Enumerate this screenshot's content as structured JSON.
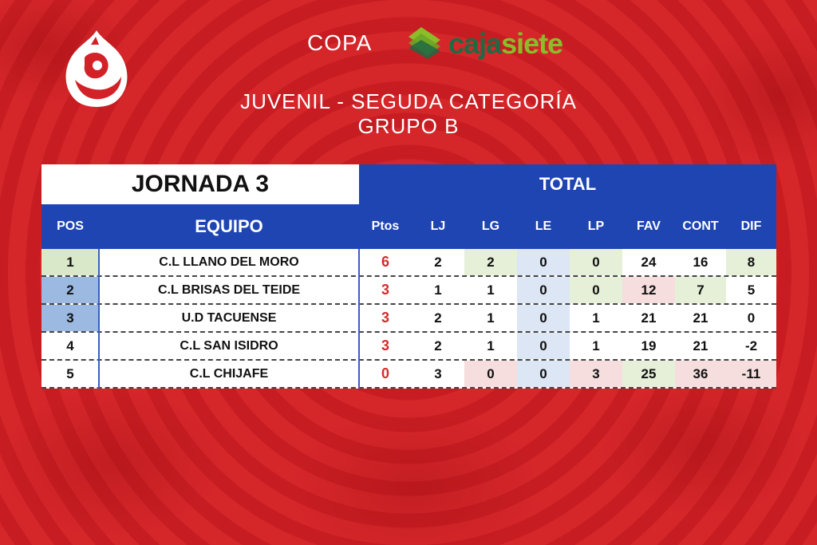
{
  "header": {
    "copa": "COPA",
    "sponsor_main": "caja",
    "sponsor_accent": "siete",
    "subtitle_line1": "JUVENIL - SEGUDA CATEGORÍA",
    "subtitle_line2": "GRUPO B"
  },
  "table": {
    "jornada": "JORNADA 3",
    "total": "TOTAL",
    "columns": [
      "POS",
      "EQUIPO",
      "Ptos",
      "LJ",
      "LG",
      "LE",
      "LP",
      "FAV",
      "CONT",
      "DIF"
    ],
    "rows": [
      {
        "pos": "1",
        "equipo": "C.L LLANO DEL MORO",
        "ptos": "6",
        "lj": "2",
        "lg": "2",
        "le": "0",
        "lp": "0",
        "fav": "24",
        "cont": "16",
        "dif": "8"
      },
      {
        "pos": "2",
        "equipo": "C.L BRISAS DEL TEIDE",
        "ptos": "3",
        "lj": "1",
        "lg": "1",
        "le": "0",
        "lp": "0",
        "fav": "12",
        "cont": "7",
        "dif": "5"
      },
      {
        "pos": "3",
        "equipo": "U.D TACUENSE",
        "ptos": "3",
        "lj": "2",
        "lg": "1",
        "le": "0",
        "lp": "1",
        "fav": "21",
        "cont": "21",
        "dif": "0"
      },
      {
        "pos": "4",
        "equipo": "C.L SAN ISIDRO",
        "ptos": "3",
        "lj": "2",
        "lg": "1",
        "le": "0",
        "lp": "1",
        "fav": "19",
        "cont": "21",
        "dif": "-2"
      },
      {
        "pos": "5",
        "equipo": "C.L CHIJAFE",
        "ptos": "0",
        "lj": "3",
        "lg": "0",
        "le": "0",
        "lp": "3",
        "fav": "25",
        "cont": "36",
        "dif": "-11"
      }
    ]
  },
  "colors": {
    "header_blue": "#1f45b3",
    "background_red": "#d22228",
    "points_red": "#d52b2b",
    "sponsor_green": "#1f6a43",
    "sponsor_lime": "#8bbd2a"
  },
  "icons": {
    "club_logo": "flame-crest-icon",
    "sponsor_logo": "stacked-leaves-icon"
  }
}
